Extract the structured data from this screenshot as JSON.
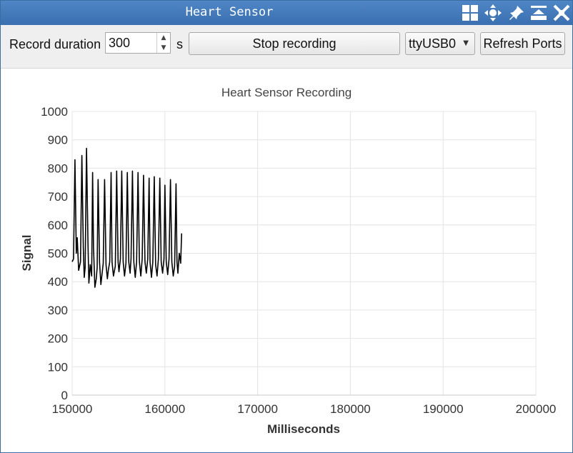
{
  "window": {
    "title": "Heart Sensor"
  },
  "titlebar_icons": [
    "grid-icon",
    "move-icon",
    "pin-icon",
    "minimize-icon",
    "close-icon"
  ],
  "toolbar": {
    "record_duration_label": "Record duration",
    "record_duration_value": "300",
    "unit_label": "s",
    "stop_button_label": "Stop recording",
    "port_selected": "ttyUSB0",
    "refresh_button_label": "Refresh Ports"
  },
  "colors": {
    "titlebar": "#3a6fb0",
    "line": "#000000",
    "grid": "#e4e4e4"
  },
  "chart_data": {
    "type": "line",
    "title": "Heart Sensor Recording",
    "xlabel": "Milliseconds",
    "ylabel": "Signal",
    "xlim": [
      150000,
      200000
    ],
    "ylim": [
      0,
      1000
    ],
    "xticks": [
      150000,
      160000,
      170000,
      180000,
      190000,
      200000
    ],
    "yticks": [
      0,
      100,
      200,
      300,
      400,
      500,
      600,
      700,
      800,
      900,
      1000
    ],
    "grid": true,
    "legend": "none",
    "series": [
      {
        "x": [
          150000,
          150150,
          150300,
          150450,
          150550,
          150700,
          150900,
          151050,
          151200,
          151300,
          151400,
          151550,
          151700,
          151800,
          151950,
          152100,
          152200,
          152300,
          152450,
          152600,
          152700,
          152800,
          152950,
          153100,
          153200,
          153350,
          153500,
          153650,
          153800,
          153900,
          154050,
          154200,
          154300,
          154450,
          154650,
          154800,
          154950,
          155050,
          155200,
          155350,
          155500,
          155650,
          155800,
          155950,
          156100,
          156250,
          156350,
          156500,
          156650,
          156800,
          156950,
          157100,
          157250,
          157400,
          157550,
          157700,
          157850,
          158000,
          158150,
          158300,
          158400,
          158550,
          158700,
          158850,
          159000,
          159150,
          159300,
          159450,
          159600,
          159750,
          159900,
          160000,
          160150,
          160300,
          160450,
          160600,
          160750,
          160900,
          161050,
          161200,
          161300,
          161400,
          161550,
          161700,
          161800
        ],
        "y": [
          470,
          480,
          830,
          500,
          555,
          440,
          470,
          845,
          520,
          415,
          450,
          870,
          540,
          395,
          460,
          420,
          785,
          520,
          380,
          410,
          450,
          760,
          470,
          390,
          420,
          465,
          760,
          460,
          410,
          440,
          470,
          785,
          470,
          420,
          455,
          790,
          470,
          435,
          480,
          790,
          470,
          420,
          465,
          785,
          470,
          430,
          480,
          790,
          470,
          415,
          470,
          785,
          470,
          420,
          480,
          775,
          470,
          430,
          480,
          765,
          470,
          415,
          470,
          770,
          460,
          420,
          480,
          765,
          470,
          430,
          480,
          740,
          470,
          425,
          480,
          760,
          470,
          420,
          455,
          745,
          470,
          430,
          500,
          465,
          570
        ]
      }
    ]
  }
}
